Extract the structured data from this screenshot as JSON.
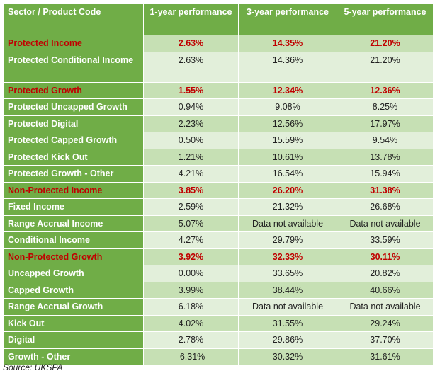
{
  "table": {
    "headers": [
      "Sector / Product Code",
      "1-year performance",
      "3-year performance",
      "5-year performance"
    ],
    "rows": [
      {
        "label": "Protected Income",
        "y1": "2.63%",
        "y3": "14.35%",
        "y5": "21.20%",
        "sector": true
      },
      {
        "label": "Protected Conditional Income",
        "y1": "2.63%",
        "y3": "14.36%",
        "y5": "21.20%",
        "sector": false
      },
      {
        "label": "Protected Growth",
        "y1": "1.55%",
        "y3": "12.34%",
        "y5": "12.36%",
        "sector": true
      },
      {
        "label": "Protected Uncapped Growth",
        "y1": "0.94%",
        "y3": "9.08%",
        "y5": "8.25%",
        "sector": false
      },
      {
        "label": "Protected Digital",
        "y1": "2.23%",
        "y3": "12.56%",
        "y5": "17.97%",
        "sector": false
      },
      {
        "label": "Protected Capped Growth",
        "y1": "0.50%",
        "y3": "15.59%",
        "y5": "9.54%",
        "sector": false
      },
      {
        "label": "Protected Kick Out",
        "y1": "1.21%",
        "y3": "10.61%",
        "y5": "13.78%",
        "sector": false
      },
      {
        "label": "Protected Growth - Other",
        "y1": "4.21%",
        "y3": "16.54%",
        "y5": "15.94%",
        "sector": false
      },
      {
        "label": "Non-Protected Income",
        "y1": "3.85%",
        "y3": "26.20%",
        "y5": "31.38%",
        "sector": true
      },
      {
        "label": "Fixed Income",
        "y1": "2.59%",
        "y3": "21.32%",
        "y5": "26.68%",
        "sector": false
      },
      {
        "label": "Range Accrual Income",
        "y1": "5.07%",
        "y3": "Data not available",
        "y5": "Data not available",
        "sector": false
      },
      {
        "label": "Conditional Income",
        "y1": "4.27%",
        "y3": "29.79%",
        "y5": "33.59%",
        "sector": false
      },
      {
        "label": "Non-Protected Growth",
        "y1": "3.92%",
        "y3": "32.33%",
        "y5": "30.11%",
        "sector": true
      },
      {
        "label": "Uncapped Growth",
        "y1": "0.00%",
        "y3": "33.65%",
        "y5": "20.82%",
        "sector": false
      },
      {
        "label": "Capped Growth",
        "y1": "3.99%",
        "y3": "38.44%",
        "y5": "40.66%",
        "sector": false
      },
      {
        "label": "Range Accrual Growth",
        "y1": "6.18%",
        "y3": "Data not available",
        "y5": "Data not available",
        "sector": false
      },
      {
        "label": "Kick Out",
        "y1": "4.02%",
        "y3": "31.55%",
        "y5": "29.24%",
        "sector": false
      },
      {
        "label": "Digital",
        "y1": "2.78%",
        "y3": "29.86%",
        "y5": "37.70%",
        "sector": false
      },
      {
        "label": "Growth - Other",
        "y1": "-6.31%",
        "y3": "30.32%",
        "y5": "31.61%",
        "sector": false
      }
    ]
  },
  "source": "Source: UKSPA",
  "colors": {
    "header_green": "#70ad47",
    "row_dark": "#c6e0b4",
    "row_light": "#e2efda",
    "sector_red": "#c00000"
  }
}
